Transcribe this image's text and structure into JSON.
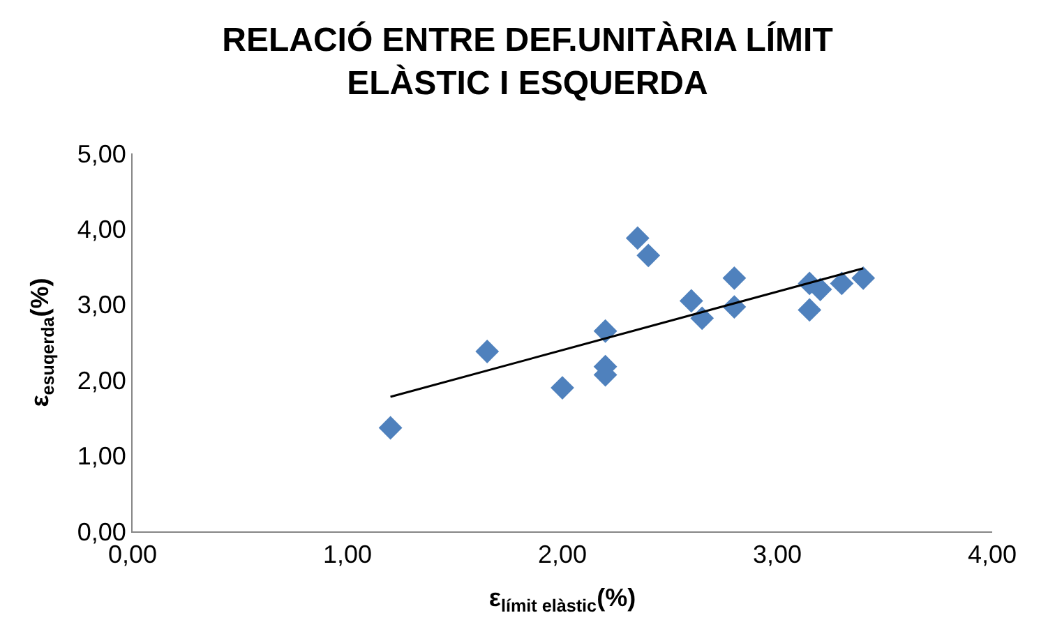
{
  "chart_data": {
    "type": "scatter",
    "title": "RELACIÓ ENTRE DEF.UNITÀRIA LÍMIT ELÀSTIC I ESQUERDA",
    "xlabel": "ε$_{límit elàstic}$(%)",
    "ylabel": "ε$_{esuqerda}$(%)",
    "xlim": [
      0,
      4
    ],
    "ylim": [
      0,
      5
    ],
    "xticks": [
      {
        "value": 0,
        "label": "0,00"
      },
      {
        "value": 1,
        "label": "1,00"
      },
      {
        "value": 2,
        "label": "2,00"
      },
      {
        "value": 3,
        "label": "3,00"
      },
      {
        "value": 4,
        "label": "4,00"
      }
    ],
    "yticks": [
      {
        "value": 0,
        "label": "0,00"
      },
      {
        "value": 1,
        "label": "1,00"
      },
      {
        "value": 2,
        "label": "2,00"
      },
      {
        "value": 3,
        "label": "3,00"
      },
      {
        "value": 4,
        "label": "4,00"
      },
      {
        "value": 5,
        "label": "5,00"
      }
    ],
    "grid": false,
    "marker": "diamond",
    "series": [
      {
        "color": "#4f81bd",
        "x": [
          1.2,
          1.65,
          2.0,
          2.2,
          2.2,
          2.2,
          2.35,
          2.4,
          2.6,
          2.65,
          2.8,
          2.8,
          3.15,
          3.15,
          3.2,
          3.3,
          3.4
        ],
        "values": [
          1.37,
          2.38,
          1.9,
          2.65,
          2.07,
          2.18,
          3.88,
          3.65,
          3.05,
          2.82,
          3.35,
          2.97,
          3.28,
          2.93,
          3.2,
          3.28,
          3.35
        ]
      },
      {
        "type": "line",
        "color": "#000000",
        "marker": "none",
        "line_style": "solid",
        "x": [
          1.2,
          3.4
        ],
        "values": [
          1.78,
          3.48
        ]
      }
    ]
  }
}
